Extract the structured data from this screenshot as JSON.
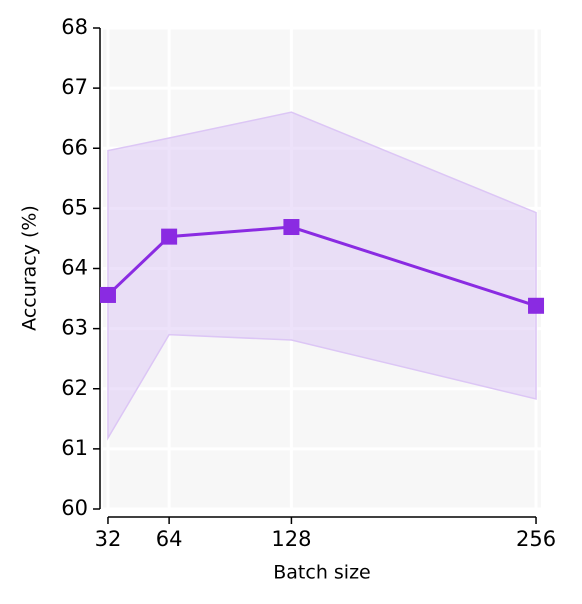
{
  "chart_data": {
    "type": "line",
    "x_label": "Batch size",
    "y_label": "Accuracy (%)",
    "x": [
      32,
      64,
      128,
      256
    ],
    "values": [
      63.56,
      64.53,
      64.69,
      63.38
    ],
    "lower": [
      61.18,
      62.9,
      62.81,
      61.83
    ],
    "upper": [
      65.96,
      66.17,
      66.6,
      64.93
    ],
    "color": "#8a2be2",
    "band_color": "#dcc6f5",
    "xlim": [
      29.4,
      258.6
    ],
    "xticks": [
      32,
      64,
      128,
      256
    ],
    "ylim": [
      60,
      68
    ],
    "yticks": [
      60,
      61,
      62,
      63,
      64,
      65,
      66,
      67,
      68
    ],
    "grid": true
  }
}
